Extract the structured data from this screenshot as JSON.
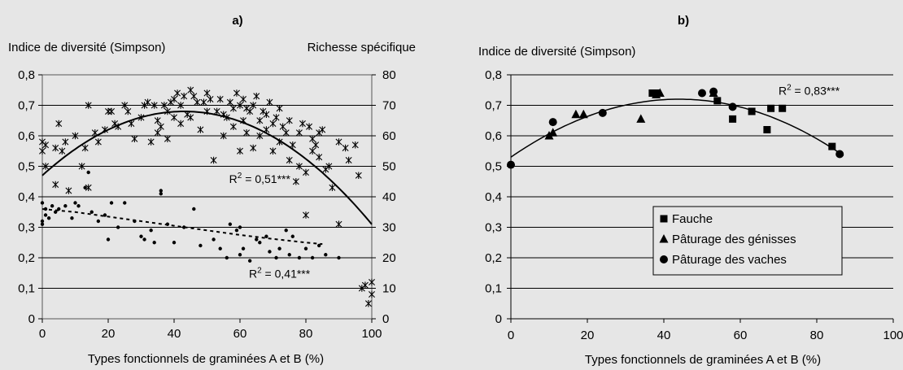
{
  "chart_data": [
    {
      "panel_label": "a)",
      "type": "scatter",
      "ylabel_left": "Indice de diversité (Simpson)",
      "ylabel_right": "Richesse spécifique",
      "xlabel": "Types fonctionnels de graminées A et B (%)",
      "xlim": [
        0,
        100
      ],
      "xticks": [
        "0",
        "20",
        "40",
        "60",
        "80",
        "100"
      ],
      "ylim_left": [
        0,
        0.8
      ],
      "yticks_left": [
        "0",
        "0,1",
        "0,2",
        "0,3",
        "0,4",
        "0,5",
        "0,6",
        "0,7",
        "0,8"
      ],
      "ylim_right": [
        0,
        80
      ],
      "yticks_right": [
        "0",
        "10",
        "20",
        "30",
        "40",
        "50",
        "60",
        "70",
        "80"
      ],
      "grid": "horizontal",
      "annotations": [
        {
          "text": "R² = 0,51***",
          "x": 66,
          "y": 0.445
        },
        {
          "text": "R² = 0,41***",
          "x": 72,
          "y": 0.135
        }
      ],
      "series": [
        {
          "marker": "asterisk",
          "axis": "right",
          "trend": {
            "type": "quadratic",
            "x0": 0,
            "y0": 47,
            "xv": 43,
            "yv": 68,
            "x1": 100,
            "y1": 31
          },
          "x": [
            0,
            0,
            1,
            1,
            4,
            4,
            5,
            6,
            7,
            8,
            10,
            12,
            13,
            14,
            14,
            16,
            17,
            19,
            20,
            21,
            22,
            23,
            25,
            26,
            27,
            28,
            30,
            31,
            32,
            33,
            34,
            35,
            35,
            36,
            37,
            38,
            38,
            39,
            40,
            40,
            41,
            42,
            42,
            43,
            44,
            45,
            45,
            46,
            47,
            48,
            49,
            50,
            50,
            51,
            52,
            53,
            54,
            55,
            55,
            56,
            57,
            58,
            58,
            59,
            60,
            60,
            61,
            61,
            62,
            62,
            63,
            64,
            64,
            65,
            66,
            66,
            67,
            68,
            68,
            69,
            70,
            70,
            71,
            72,
            72,
            73,
            74,
            75,
            75,
            76,
            77,
            78,
            78,
            79,
            80,
            80,
            81,
            82,
            82,
            83,
            84,
            84,
            85,
            86,
            87,
            88,
            90,
            90,
            92,
            93,
            95,
            96,
            97,
            98,
            99,
            100,
            100
          ],
          "y": [
            55,
            58,
            50,
            57,
            56,
            44,
            64,
            55,
            58,
            42,
            60,
            50,
            56,
            43,
            70,
            61,
            58,
            62,
            68,
            68,
            64,
            63,
            70,
            68,
            64,
            59,
            66,
            70,
            71,
            58,
            70,
            65,
            61,
            63,
            70,
            68,
            59,
            71,
            66,
            72,
            74,
            64,
            70,
            73,
            67,
            75,
            66,
            73,
            71,
            62,
            71,
            74,
            68,
            72,
            52,
            68,
            72,
            60,
            67,
            66,
            71,
            63,
            69,
            74,
            70,
            55,
            72,
            65,
            69,
            61,
            68,
            70,
            56,
            73,
            65,
            60,
            68,
            67,
            62,
            71,
            64,
            55,
            66,
            69,
            58,
            63,
            61,
            65,
            52,
            57,
            45,
            50,
            61,
            64,
            34,
            48,
            63,
            59,
            55,
            57,
            61,
            53,
            62,
            49,
            50,
            43,
            58,
            31,
            56,
            52,
            57,
            47,
            10,
            11,
            5,
            12,
            8
          ]
        },
        {
          "marker": "dot",
          "axis": "left",
          "x": [
            0,
            0,
            0,
            1,
            1,
            2,
            3,
            4,
            5,
            7,
            9,
            10,
            11,
            13,
            14,
            15,
            17,
            19,
            20,
            21,
            23,
            25,
            28,
            30,
            31,
            33,
            34,
            36,
            36,
            38,
            40,
            43,
            46,
            48,
            52,
            54,
            56,
            57,
            59,
            60,
            60,
            61,
            63,
            65,
            66,
            68,
            69,
            71,
            72,
            74,
            75,
            76,
            78,
            80,
            82,
            84,
            86,
            90
          ],
          "y": [
            0.38,
            0.32,
            0.31,
            0.36,
            0.34,
            0.33,
            0.37,
            0.35,
            0.36,
            0.37,
            0.33,
            0.38,
            0.37,
            0.43,
            0.48,
            0.35,
            0.32,
            0.34,
            0.26,
            0.38,
            0.3,
            0.38,
            0.32,
            0.27,
            0.26,
            0.29,
            0.25,
            0.42,
            0.41,
            0.31,
            0.25,
            0.3,
            0.36,
            0.24,
            0.26,
            0.23,
            0.2,
            0.31,
            0.29,
            0.21,
            0.3,
            0.23,
            0.19,
            0.26,
            0.25,
            0.27,
            0.22,
            0.2,
            0.23,
            0.29,
            0.21,
            0.27,
            0.2,
            0.23,
            0.2,
            0.24,
            0.21,
            0.2
          ],
          "trend": {
            "type": "line",
            "x": [
              0,
              10,
              20,
              30,
              40,
              50,
              60,
              70,
              80,
              85
            ],
            "y": [
              0.36,
              0.35,
              0.335,
              0.32,
              0.305,
              0.29,
              0.275,
              0.262,
              0.25,
              0.245
            ]
          }
        }
      ]
    },
    {
      "panel_label": "b)",
      "type": "scatter",
      "ylabel": "Indice de diversité (Simpson)",
      "xlabel": "Types fonctionnels de graminées A et B (%)",
      "xlim": [
        0,
        100
      ],
      "xticks": [
        "0",
        "20",
        "40",
        "60",
        "80",
        "100"
      ],
      "ylim": [
        0,
        0.8
      ],
      "yticks": [
        "0",
        "0,1",
        "0,2",
        "0,3",
        "0,4",
        "0,5",
        "0,6",
        "0,7",
        "0,8"
      ],
      "grid": "horizontal",
      "legend_position": "center",
      "annotations": [
        {
          "text": "R² = 0,83***",
          "x": 78,
          "y": 0.735
        }
      ],
      "trend": {
        "type": "quadratic",
        "x0": 0,
        "y0": 0.53,
        "xv": 44,
        "yv": 0.72,
        "x1": 87,
        "y1": 0.535
      },
      "series": [
        {
          "name": "Fauche",
          "marker": "square",
          "x": [
            37,
            38,
            54,
            58,
            63,
            67,
            68,
            71,
            84
          ],
          "y": [
            0.74,
            0.74,
            0.715,
            0.655,
            0.68,
            0.62,
            0.69,
            0.69,
            0.565
          ]
        },
        {
          "name": "Pâturage des génisses",
          "marker": "triangle",
          "x": [
            10,
            11,
            17,
            19,
            34,
            38,
            39,
            53
          ],
          "y": [
            0.6,
            0.61,
            0.67,
            0.67,
            0.655,
            0.735,
            0.74,
            0.74
          ]
        },
        {
          "name": "Pâturage des vaches",
          "marker": "circle",
          "x": [
            0,
            11,
            24,
            50,
            53,
            58,
            86
          ],
          "y": [
            0.505,
            0.645,
            0.675,
            0.74,
            0.745,
            0.695,
            0.54
          ]
        }
      ]
    }
  ]
}
